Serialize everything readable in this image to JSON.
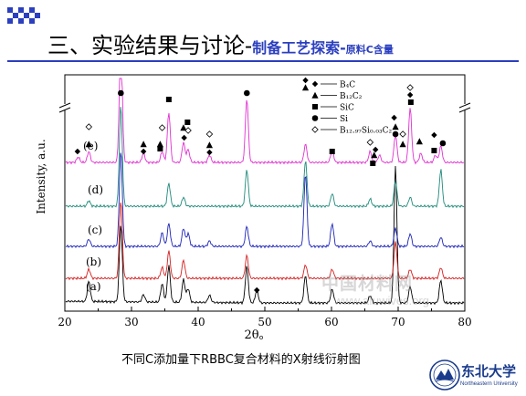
{
  "slide": {
    "title_main": "三、实验结果与讨论-",
    "title_sub": "制备工艺探索-",
    "title_small": "原料C含量",
    "caption": "不同C添加量下RBBC复合材料的X射线衍射图",
    "logo_cn": "东北大学",
    "logo_en": "Northeastern University",
    "watermark_cn": "中国材料网",
    "watermark_url": "www.afuwives.org"
  },
  "chart_data": {
    "type": "line",
    "xlabel": "2θ。",
    "ylabel": "Intensity, a.u.",
    "xlim": [
      20,
      80
    ],
    "xticks": [
      "20",
      "30",
      "40",
      "50",
      "60",
      "70",
      "80"
    ],
    "grid": false,
    "legend": {
      "placement": "top-right",
      "entries": [
        {
          "symbol": "diamond",
          "label": "B₄C"
        },
        {
          "symbol": "triangle",
          "label": "B₁₂C₂"
        },
        {
          "symbol": "square",
          "label": "SiC"
        },
        {
          "symbol": "circle",
          "label": "Si"
        },
        {
          "symbol": "diamond-open",
          "label": "B₁₂.₉₇Si₀.₀₃C₂"
        }
      ]
    },
    "series": [
      {
        "name": "(a)",
        "color": "#000000",
        "peaks": [
          [
            23.6,
            22
          ],
          [
            28.4,
            85
          ],
          [
            31.8,
            8
          ],
          [
            34.6,
            20
          ],
          [
            35.6,
            40
          ],
          [
            37.8,
            25
          ],
          [
            38.5,
            15
          ],
          [
            41.7,
            8
          ],
          [
            47.3,
            40
          ],
          [
            48.8,
            14
          ],
          [
            56.1,
            30
          ],
          [
            60.1,
            15
          ],
          [
            65.8,
            8
          ],
          [
            69.6,
            150
          ],
          [
            71.8,
            18
          ],
          [
            76.4,
            25
          ]
        ]
      },
      {
        "name": "(b)",
        "color": "#d42020",
        "peaks": [
          [
            23.6,
            10
          ],
          [
            28.4,
            85
          ],
          [
            34.6,
            12
          ],
          [
            35.6,
            30
          ],
          [
            37.8,
            20
          ],
          [
            47.3,
            25
          ],
          [
            56.1,
            15
          ],
          [
            60.1,
            10
          ],
          [
            69.6,
            40
          ],
          [
            71.8,
            10
          ],
          [
            76.4,
            12
          ]
        ]
      },
      {
        "name": "(c)",
        "color": "#1a22b8",
        "peaks": [
          [
            23.6,
            8
          ],
          [
            28.4,
            105
          ],
          [
            34.6,
            15
          ],
          [
            35.6,
            25
          ],
          [
            37.8,
            20
          ],
          [
            38.5,
            14
          ],
          [
            41.7,
            6
          ],
          [
            47.3,
            22
          ],
          [
            56.1,
            80
          ],
          [
            60.1,
            25
          ],
          [
            65.8,
            6
          ],
          [
            69.6,
            20
          ],
          [
            71.8,
            14
          ],
          [
            76.4,
            10
          ]
        ]
      },
      {
        "name": "(d)",
        "color": "#1f8a7a",
        "peaks": [
          [
            23.6,
            6
          ],
          [
            28.4,
            110
          ],
          [
            35.6,
            25
          ],
          [
            37.8,
            10
          ],
          [
            47.3,
            40
          ],
          [
            56.1,
            50
          ],
          [
            60.1,
            14
          ],
          [
            65.8,
            8
          ],
          [
            69.6,
            28
          ],
          [
            71.8,
            10
          ],
          [
            76.4,
            40
          ]
        ]
      },
      {
        "name": "(e)",
        "color": "#e030d0",
        "peaks": [
          [
            22.0,
            6
          ],
          [
            23.6,
            12
          ],
          [
            28.4,
            140
          ],
          [
            31.8,
            10
          ],
          [
            34.6,
            12
          ],
          [
            35.6,
            55
          ],
          [
            37.8,
            22
          ],
          [
            38.5,
            14
          ],
          [
            41.7,
            8
          ],
          [
            47.3,
            70
          ],
          [
            56.1,
            20
          ],
          [
            60.1,
            14
          ],
          [
            65.8,
            12
          ],
          [
            67.2,
            8
          ],
          [
            69.6,
            30
          ],
          [
            71.8,
            60
          ],
          [
            73.4,
            10
          ],
          [
            75.6,
            8
          ],
          [
            76.4,
            18
          ]
        ]
      }
    ],
    "markers": [
      {
        "x": 28.4,
        "symbol": "circle"
      },
      {
        "x": 47.3,
        "symbol": "circle"
      },
      {
        "x": 35.6,
        "symbol": "square"
      },
      {
        "x": 56.1,
        "symbol": "diamond"
      },
      {
        "x": 56.1,
        "symbol": "triangle"
      },
      {
        "x": 60.1,
        "symbol": "square"
      },
      {
        "x": 21.9,
        "symbol": "diamond"
      },
      {
        "x": 23.6,
        "symbol": "triangle"
      },
      {
        "x": 23.6,
        "symbol": "diamond-open"
      },
      {
        "x": 31.8,
        "symbol": "triangle"
      },
      {
        "x": 31.8,
        "symbol": "diamond"
      },
      {
        "x": 34.3,
        "symbol": "triangle"
      },
      {
        "x": 34.3,
        "symbol": "square"
      },
      {
        "x": 34.6,
        "symbol": "diamond-open"
      },
      {
        "x": 37.8,
        "symbol": "triangle"
      },
      {
        "x": 38.4,
        "symbol": "square"
      },
      {
        "x": 37.9,
        "symbol": "diamond"
      },
      {
        "x": 38.5,
        "symbol": "diamond-open"
      },
      {
        "x": 41.7,
        "symbol": "diamond-open"
      },
      {
        "x": 41.7,
        "symbol": "triangle"
      },
      {
        "x": 41.7,
        "symbol": "diamond"
      },
      {
        "x": 65.8,
        "symbol": "diamond-open"
      },
      {
        "x": 66.6,
        "symbol": "diamond"
      },
      {
        "x": 66.4,
        "symbol": "triangle"
      },
      {
        "x": 69.4,
        "symbol": "diamond"
      },
      {
        "x": 69.6,
        "symbol": "triangle"
      },
      {
        "x": 69.6,
        "symbol": "circle"
      },
      {
        "x": 70.7,
        "symbol": "diamond-open"
      },
      {
        "x": 70.7,
        "symbol": "triangle"
      },
      {
        "x": 71.8,
        "symbol": "diamond-open"
      },
      {
        "x": 71.8,
        "symbol": "diamond"
      },
      {
        "x": 71.9,
        "symbol": "square"
      },
      {
        "x": 73.2,
        "symbol": "triangle"
      },
      {
        "x": 75.4,
        "symbol": "diamond"
      },
      {
        "x": 75.4,
        "symbol": "square"
      },
      {
        "x": 76.7,
        "symbol": "circle"
      },
      {
        "x": 66.2,
        "symbol": "square"
      },
      {
        "x": 48.8,
        "symbol": "diamond"
      }
    ]
  }
}
